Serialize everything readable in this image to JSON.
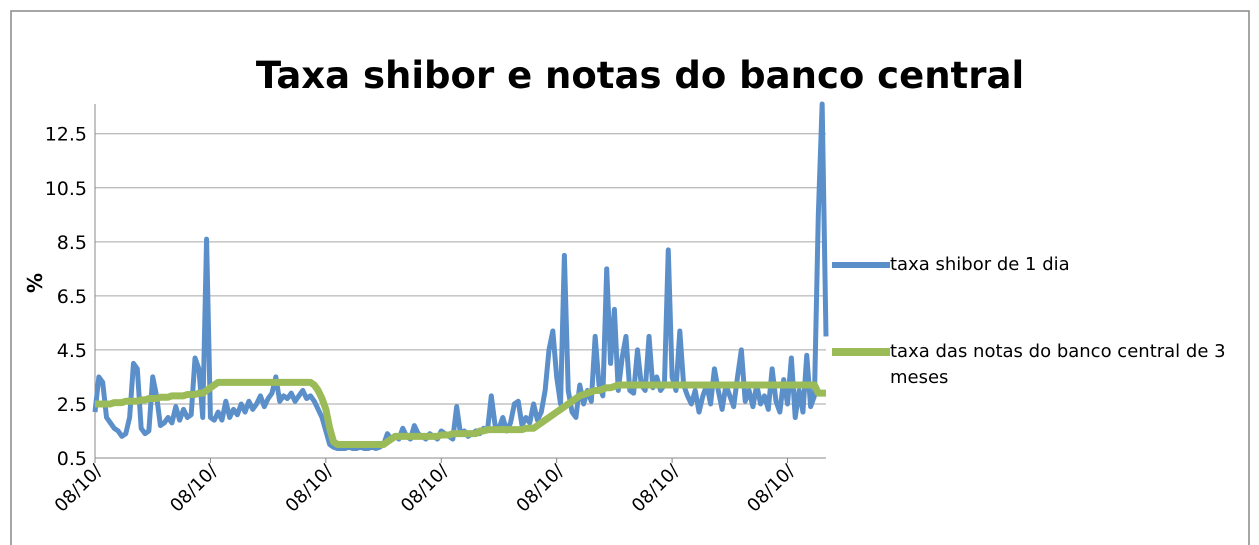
{
  "chart_data": {
    "type": "line",
    "title": "Taxa shibor e notas do banco central",
    "y_label": "%",
    "ylim": [
      0.5,
      13.6
    ],
    "yticks": [
      0.5,
      2.5,
      4.5,
      6.5,
      8.5,
      10.5,
      12.5
    ],
    "grid": true,
    "legend": "right",
    "categories": [
      "08/10/",
      null,
      null,
      null,
      null,
      null,
      null,
      null,
      null,
      null,
      null,
      null,
      null,
      null,
      null,
      null,
      null,
      null,
      null,
      null,
      null,
      null,
      null,
      null,
      null,
      null,
      null,
      null,
      null,
      null,
      "08/10/",
      null,
      null,
      null,
      null,
      null,
      null,
      null,
      null,
      null,
      null,
      null,
      null,
      null,
      null,
      null,
      null,
      null,
      null,
      null,
      null,
      null,
      null,
      null,
      null,
      null,
      null,
      null,
      null,
      null,
      "08/10/",
      null,
      null,
      null,
      null,
      null,
      null,
      null,
      null,
      null,
      null,
      null,
      null,
      null,
      null,
      null,
      null,
      null,
      null,
      null,
      null,
      null,
      null,
      null,
      null,
      null,
      null,
      null,
      null,
      null,
      "08/10/",
      null,
      null,
      null,
      null,
      null,
      null,
      null,
      null,
      null,
      null,
      null,
      null,
      null,
      null,
      null,
      null,
      null,
      null,
      null,
      null,
      null,
      null,
      null,
      null,
      null,
      null,
      null,
      null,
      null,
      "08/10/",
      null,
      null,
      null,
      null,
      null,
      null,
      null,
      null,
      null,
      null,
      null,
      null,
      null,
      null,
      null,
      null,
      null,
      null,
      null,
      null,
      null,
      null,
      null,
      null,
      null,
      null,
      null,
      null,
      null,
      "08/10/",
      null,
      null,
      null,
      null,
      null,
      null,
      null,
      null,
      null,
      null,
      null,
      null,
      null,
      null,
      null,
      null,
      null,
      null,
      null,
      null,
      null,
      null,
      null,
      null,
      null,
      null,
      null,
      null,
      null,
      "08/10/",
      null,
      null,
      null,
      null,
      null,
      null,
      null,
      null,
      null,
      null
    ],
    "series": [
      {
        "name": "taxa shibor de 1 dia",
        "color": "#5b8fca",
        "values": [
          2.2,
          3.5,
          3.3,
          2.0,
          1.8,
          1.6,
          1.5,
          1.3,
          1.4,
          2.0,
          4.0,
          3.8,
          1.6,
          1.4,
          1.5,
          3.5,
          2.8,
          1.7,
          1.8,
          2.0,
          1.8,
          2.4,
          1.9,
          2.3,
          2.0,
          2.1,
          4.2,
          3.8,
          2.0,
          8.6,
          2.0,
          1.9,
          2.2,
          1.9,
          2.6,
          2.0,
          2.3,
          2.1,
          2.5,
          2.2,
          2.6,
          2.3,
          2.5,
          2.8,
          2.4,
          2.7,
          2.9,
          3.5,
          2.6,
          2.8,
          2.7,
          2.9,
          2.6,
          2.8,
          3.0,
          2.7,
          2.8,
          2.6,
          2.3,
          2.0,
          1.5,
          1.0,
          0.9,
          0.85,
          0.85,
          0.85,
          0.9,
          0.85,
          0.85,
          0.9,
          0.85,
          0.85,
          0.9,
          0.85,
          0.9,
          1.0,
          1.4,
          1.2,
          1.3,
          1.2,
          1.6,
          1.3,
          1.2,
          1.7,
          1.4,
          1.3,
          1.2,
          1.4,
          1.3,
          1.2,
          1.5,
          1.4,
          1.3,
          1.2,
          2.4,
          1.4,
          1.5,
          1.3,
          1.4,
          1.5,
          1.4,
          1.6,
          1.5,
          2.8,
          1.7,
          1.6,
          2.0,
          1.5,
          1.8,
          2.5,
          2.6,
          1.7,
          2.0,
          1.8,
          2.5,
          1.9,
          2.2,
          3.0,
          4.5,
          5.2,
          3.5,
          2.5,
          8.0,
          3.0,
          2.2,
          2.0,
          3.2,
          2.5,
          3.0,
          2.6,
          5.0,
          3.2,
          2.8,
          7.5,
          4.0,
          6.0,
          3.0,
          4.2,
          5.0,
          3.0,
          2.9,
          4.5,
          3.2,
          3.0,
          5.0,
          3.1,
          3.5,
          3.0,
          3.2,
          8.2,
          3.5,
          3.0,
          5.2,
          3.2,
          2.8,
          2.5,
          3.0,
          2.2,
          2.8,
          3.2,
          2.5,
          3.8,
          3.0,
          2.3,
          3.2,
          2.8,
          2.4,
          3.5,
          4.5,
          2.6,
          3.0,
          2.4,
          3.2,
          2.5,
          2.8,
          2.3,
          3.8,
          2.6,
          2.2,
          3.4,
          2.5,
          4.2,
          2.0,
          3.0,
          2.2,
          4.3,
          2.4,
          2.8,
          9.5,
          13.6,
          5.0
        ]
      },
      {
        "name": "taxa das notas do banco central de 3 meses",
        "color": "#9bbb59",
        "values": [
          2.5,
          2.5,
          2.5,
          2.5,
          2.5,
          2.55,
          2.55,
          2.55,
          2.6,
          2.6,
          2.6,
          2.6,
          2.65,
          2.65,
          2.7,
          2.7,
          2.7,
          2.75,
          2.75,
          2.75,
          2.8,
          2.8,
          2.8,
          2.8,
          2.85,
          2.85,
          2.85,
          2.9,
          2.9,
          3.0,
          3.1,
          3.2,
          3.3,
          3.3,
          3.3,
          3.3,
          3.3,
          3.3,
          3.3,
          3.3,
          3.3,
          3.3,
          3.3,
          3.3,
          3.3,
          3.3,
          3.3,
          3.3,
          3.3,
          3.3,
          3.3,
          3.3,
          3.3,
          3.3,
          3.3,
          3.3,
          3.3,
          3.2,
          3.0,
          2.7,
          2.3,
          1.6,
          1.1,
          1.0,
          1.0,
          1.0,
          1.0,
          1.0,
          1.0,
          1.0,
          1.0,
          1.0,
          1.0,
          1.0,
          1.0,
          1.0,
          1.1,
          1.2,
          1.3,
          1.3,
          1.3,
          1.3,
          1.3,
          1.3,
          1.3,
          1.3,
          1.3,
          1.3,
          1.3,
          1.3,
          1.35,
          1.35,
          1.35,
          1.4,
          1.4,
          1.4,
          1.4,
          1.4,
          1.4,
          1.4,
          1.5,
          1.5,
          1.55,
          1.55,
          1.55,
          1.55,
          1.55,
          1.55,
          1.55,
          1.55,
          1.55,
          1.55,
          1.6,
          1.6,
          1.6,
          1.7,
          1.8,
          1.9,
          2.0,
          2.1,
          2.2,
          2.3,
          2.4,
          2.5,
          2.6,
          2.7,
          2.8,
          2.85,
          2.9,
          2.95,
          3.0,
          3.0,
          3.05,
          3.1,
          3.1,
          3.15,
          3.2,
          3.2,
          3.2,
          3.2,
          3.2,
          3.2,
          3.2,
          3.2,
          3.2,
          3.2,
          3.2,
          3.2,
          3.2,
          3.2,
          3.2,
          3.2,
          3.2,
          3.2,
          3.2,
          3.2,
          3.2,
          3.2,
          3.2,
          3.2,
          3.2,
          3.2,
          3.2,
          3.2,
          3.2,
          3.2,
          3.2,
          3.2,
          3.2,
          3.2,
          3.2,
          3.2,
          3.2,
          3.2,
          3.2,
          3.2,
          3.2,
          3.2,
          3.2,
          3.2,
          3.2,
          3.2,
          3.2,
          3.2,
          3.2,
          3.2,
          3.2,
          3.2,
          2.9,
          2.9,
          2.9
        ]
      }
    ]
  }
}
